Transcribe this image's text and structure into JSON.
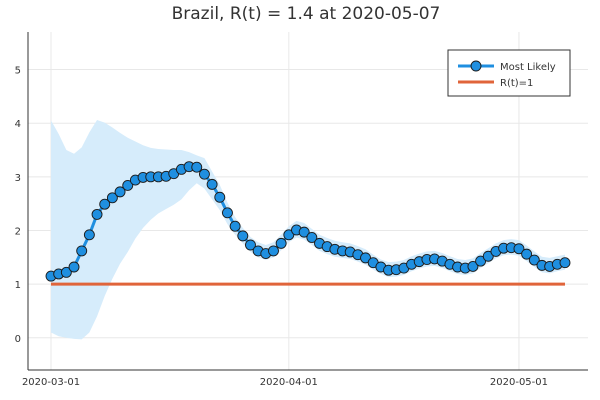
{
  "chart_data": {
    "type": "line",
    "title": "Brazil, R(t) = 1.4 at 2020-05-07",
    "xlabel": "",
    "ylabel": "",
    "x_start": "2020-03-01",
    "x_end": "2020-05-07",
    "xlim": [
      "2020-02-27",
      "2020-05-10"
    ],
    "ylim": [
      -0.6,
      5.7
    ],
    "x_ticks": [
      {
        "date": "2020-03-01",
        "label": "2020-03-01"
      },
      {
        "date": "2020-04-01",
        "label": "2020-04-01"
      },
      {
        "date": "2020-05-01",
        "label": "2020-05-01"
      }
    ],
    "y_ticks": [
      0,
      1,
      2,
      3,
      4,
      5
    ],
    "grid": true,
    "legend_position": "top-right",
    "series": [
      {
        "name": "Most Likely",
        "color": "#1f8fe0",
        "marker": "circle",
        "values": [
          1.15,
          1.19,
          1.22,
          1.32,
          1.62,
          1.92,
          2.3,
          2.49,
          2.61,
          2.72,
          2.84,
          2.94,
          2.99,
          3.0,
          3.0,
          3.01,
          3.06,
          3.14,
          3.19,
          3.18,
          3.05,
          2.86,
          2.62,
          2.33,
          2.08,
          1.9,
          1.73,
          1.62,
          1.57,
          1.62,
          1.76,
          1.92,
          2.01,
          1.97,
          1.87,
          1.76,
          1.7,
          1.65,
          1.62,
          1.6,
          1.55,
          1.49,
          1.4,
          1.32,
          1.26,
          1.27,
          1.3,
          1.37,
          1.42,
          1.46,
          1.47,
          1.43,
          1.37,
          1.32,
          1.3,
          1.33,
          1.43,
          1.52,
          1.61,
          1.67,
          1.68,
          1.66,
          1.56,
          1.45,
          1.35,
          1.33,
          1.37,
          1.4
        ]
      },
      {
        "name": "R(t)=1",
        "color": "#e0643a",
        "values": [
          1,
          1
        ]
      }
    ],
    "band": {
      "upper": [
        4.05,
        3.8,
        3.5,
        3.43,
        3.55,
        3.83,
        4.06,
        4.01,
        3.92,
        3.82,
        3.73,
        3.66,
        3.59,
        3.54,
        3.52,
        3.51,
        3.5,
        3.5,
        3.46,
        3.4,
        3.35,
        3.1,
        2.85,
        2.52,
        2.25,
        2.05,
        1.88,
        1.78,
        1.73,
        1.78,
        1.92,
        2.08,
        2.18,
        2.14,
        2.03,
        1.92,
        1.86,
        1.81,
        1.78,
        1.76,
        1.71,
        1.65,
        1.55,
        1.46,
        1.41,
        1.42,
        1.45,
        1.52,
        1.57,
        1.61,
        1.62,
        1.58,
        1.52,
        1.47,
        1.45,
        1.48,
        1.58,
        1.67,
        1.76,
        1.82,
        1.84,
        1.82,
        1.72,
        1.61,
        1.51,
        1.49,
        1.52,
        1.55
      ],
      "lower": [
        0.1,
        0.03,
        0.0,
        -0.02,
        -0.03,
        0.1,
        0.4,
        0.78,
        1.1,
        1.38,
        1.6,
        1.85,
        2.05,
        2.2,
        2.32,
        2.4,
        2.48,
        2.58,
        2.75,
        2.88,
        2.78,
        2.58,
        2.38,
        2.12,
        1.92,
        1.76,
        1.6,
        1.5,
        1.45,
        1.5,
        1.63,
        1.78,
        1.87,
        1.83,
        1.73,
        1.62,
        1.56,
        1.51,
        1.49,
        1.47,
        1.42,
        1.36,
        1.27,
        1.19,
        1.13,
        1.14,
        1.17,
        1.24,
        1.29,
        1.33,
        1.34,
        1.3,
        1.24,
        1.19,
        1.17,
        1.2,
        1.3,
        1.39,
        1.48,
        1.54,
        1.55,
        1.53,
        1.43,
        1.32,
        1.22,
        1.2,
        1.24,
        1.27
      ],
      "color": "#d6ecfb"
    }
  }
}
